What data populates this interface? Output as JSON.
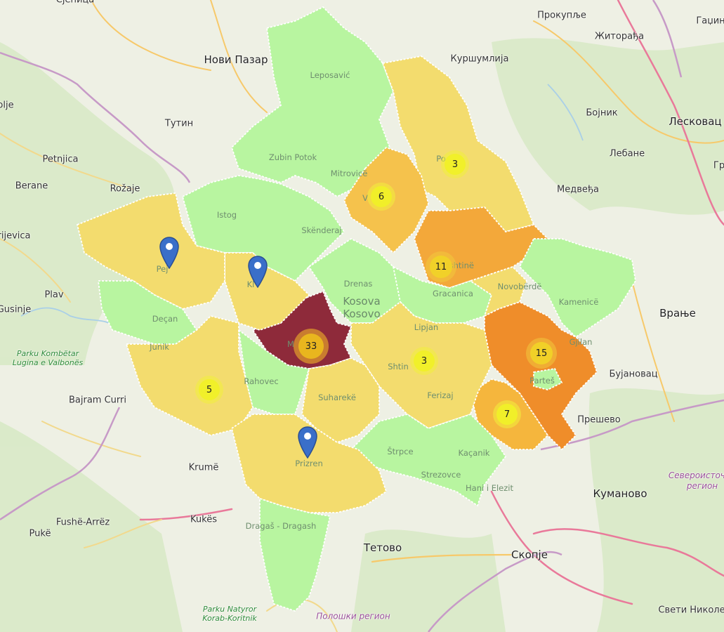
{
  "colors": {
    "green": "#b8f5a0",
    "yellow": "#f3dc6e",
    "yelloworange": "#f5c24c",
    "orange": "#f3a83a",
    "darkorange": "#ef8d2a",
    "darkred": "#8e2a3a",
    "marker": "#3a6fc9"
  },
  "places": [
    {
      "id": "novi-pazar",
      "text": "Нови Пазар",
      "big": true
    },
    {
      "id": "tutin",
      "text": "Тутин"
    },
    {
      "id": "petnjica",
      "text": "Petnjica"
    },
    {
      "id": "berane",
      "text": "Berane"
    },
    {
      "id": "rozaje",
      "text": "Rožaje"
    },
    {
      "id": "rijevica",
      "text": "rijevica"
    },
    {
      "id": "plav",
      "text": "Plav"
    },
    {
      "id": "gusinje",
      "text": "Gusinje"
    },
    {
      "id": "olje",
      "text": "olje"
    },
    {
      "id": "kursumlija",
      "text": "Куршумлија"
    },
    {
      "id": "prokuplje",
      "text": "Прокупље"
    },
    {
      "id": "zitoradja",
      "text": "Житорађа"
    },
    {
      "id": "gadzin",
      "text": "Гаџин"
    },
    {
      "id": "bojnik",
      "text": "Бојник"
    },
    {
      "id": "leskovac",
      "text": "Лесковац",
      "big": true
    },
    {
      "id": "lebane",
      "text": "Лебане"
    },
    {
      "id": "gr",
      "text": "Гр"
    },
    {
      "id": "medvedja",
      "text": "Медвеђа"
    },
    {
      "id": "vranje",
      "text": "Врање",
      "big": true
    },
    {
      "id": "bujanovac",
      "text": "Бујановац"
    },
    {
      "id": "presevo",
      "text": "Прешево"
    },
    {
      "id": "kumanovo",
      "text": "Куманово",
      "big": true
    },
    {
      "id": "skopje",
      "text": "Скопје",
      "big": true
    },
    {
      "id": "tetovo",
      "text": "Тетово",
      "big": true
    },
    {
      "id": "sveti-nikole",
      "text": "Свети Николе"
    },
    {
      "id": "bajram-curri",
      "text": "Bajram Curri"
    },
    {
      "id": "krume",
      "text": "Krumë"
    },
    {
      "id": "kukes",
      "text": "Kukës"
    },
    {
      "id": "fushe-arrez",
      "text": "Fushë-Arrëz"
    },
    {
      "id": "puke",
      "text": "Pukë"
    },
    {
      "id": "senica",
      "text": "Сјеница"
    }
  ],
  "municipalities": [
    {
      "id": "leposavic",
      "text": "Leposavić"
    },
    {
      "id": "zubin-potok",
      "text": "Zubin Potok"
    },
    {
      "id": "mitrovice",
      "text": "Mitrovicë"
    },
    {
      "id": "istog",
      "text": "Istog"
    },
    {
      "id": "skenderaj",
      "text": "Skënderaj"
    },
    {
      "id": "drenas",
      "text": "Drenas"
    },
    {
      "id": "decan",
      "text": "Deçan"
    },
    {
      "id": "junik",
      "text": "Junik"
    },
    {
      "id": "rahovec",
      "text": "Rahovec"
    },
    {
      "id": "suhareke",
      "text": "Suharekë"
    },
    {
      "id": "prizren",
      "text": "Prizren"
    },
    {
      "id": "dragash",
      "text": "Dragaš - Dragash"
    },
    {
      "id": "strpce",
      "text": "Štrpce"
    },
    {
      "id": "kacanik",
      "text": "Kaçanik"
    },
    {
      "id": "hani-elezit",
      "text": "Hani i Elezit"
    },
    {
      "id": "ferizaj",
      "text": "Ferizaj"
    },
    {
      "id": "shtime",
      "text": "Shtin"
    },
    {
      "id": "lipjan",
      "text": "Lipjan"
    },
    {
      "id": "gracanica",
      "text": "Gracanica"
    },
    {
      "id": "prishtine",
      "text": "Prishtinë"
    },
    {
      "id": "kamenice",
      "text": "Kamenicë"
    },
    {
      "id": "gjilan",
      "text": "Gjilan"
    },
    {
      "id": "partes",
      "text": "Parteš"
    },
    {
      "id": "novoberde",
      "text": "Novobërdë"
    },
    {
      "id": "podujeve",
      "text": "Po"
    },
    {
      "id": "vushtrri",
      "text": "V"
    },
    {
      "id": "peje",
      "text": "Pej"
    },
    {
      "id": "kline",
      "text": "Kl"
    },
    {
      "id": "malisheve",
      "text": "M"
    },
    {
      "id": "gjakove",
      "text": "G"
    },
    {
      "id": "strezovce",
      "text": "Strezovce"
    }
  ],
  "country_label": [
    "Kosova",
    "Kosovo"
  ],
  "parks": [
    {
      "id": "valbones",
      "text": "Parku Kombëtar Lugina e Valbonës"
    },
    {
      "id": "korab",
      "text": "Parku Natyror Korab-Koritnik"
    }
  ],
  "regions": [
    {
      "id": "poloski",
      "text": "Полошки регион"
    },
    {
      "id": "severoistocen",
      "text": "Североисточен регион"
    }
  ],
  "clusters": [
    {
      "id": "podujeve",
      "count": "3",
      "level": "small"
    },
    {
      "id": "vushtrri",
      "count": "6",
      "level": "small"
    },
    {
      "id": "prishtine",
      "count": "11",
      "level": "medium"
    },
    {
      "id": "malisheve",
      "count": "33",
      "level": "large"
    },
    {
      "id": "ferizaj",
      "count": "3",
      "level": "small"
    },
    {
      "id": "gjilan",
      "count": "15",
      "level": "medium"
    },
    {
      "id": "viti",
      "count": "7",
      "level": "small"
    },
    {
      "id": "gjakove",
      "count": "5",
      "level": "small"
    }
  ],
  "markers": [
    {
      "id": "peje"
    },
    {
      "id": "kline"
    },
    {
      "id": "prizren"
    }
  ]
}
